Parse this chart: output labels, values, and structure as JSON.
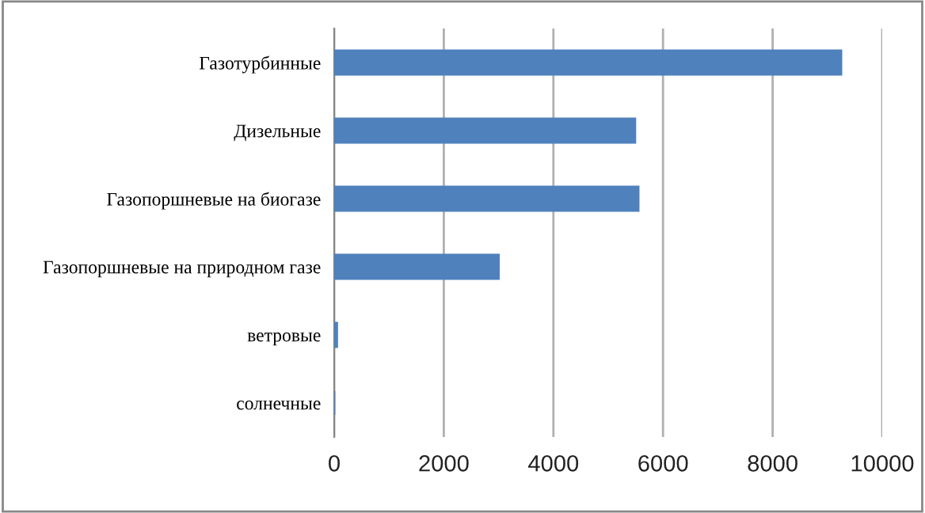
{
  "chart_data": {
    "type": "bar",
    "orientation": "horizontal",
    "categories": [
      "Газотурбинные",
      "Дизельные",
      "Газопоршневые на биогазе",
      "Газопоршневые на природном газе",
      "ветровые",
      "солнечные"
    ],
    "values": [
      9250,
      5490,
      5550,
      3000,
      50,
      0
    ],
    "color": "#4f81bd",
    "xlim": [
      0,
      10000
    ],
    "xticks": [
      0,
      2000,
      4000,
      6000,
      8000,
      10000
    ],
    "grid": "x"
  }
}
